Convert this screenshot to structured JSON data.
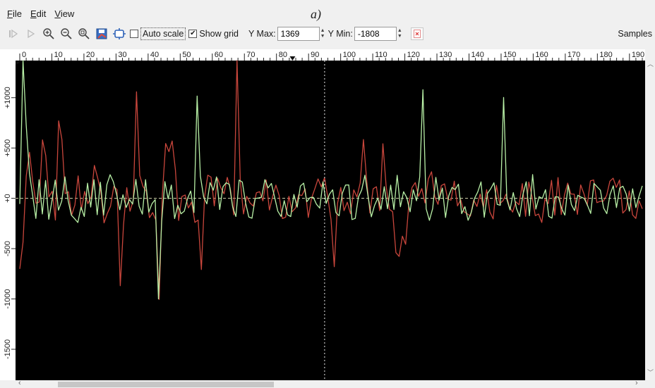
{
  "caption": "a)",
  "menu": {
    "file": "File",
    "edit": "Edit",
    "view": "View"
  },
  "toolbar": {
    "icons": [
      "step-icon",
      "play-icon",
      "zoom-in-icon",
      "zoom-out-icon",
      "zoom-fit-icon",
      "save-image-icon",
      "settings-icon"
    ],
    "auto_scale_label": "Auto scale",
    "auto_scale_checked": false,
    "show_grid_label": "Show grid",
    "show_grid_checked": true,
    "y_max_label": "Y Max:",
    "y_max_value": "1369",
    "y_min_label": "Y Min:",
    "y_min_value": "-1808",
    "samples_label": "Samples"
  },
  "chart_data": {
    "type": "line",
    "background": "#000000",
    "grid": true,
    "x_ticks": [
      "0",
      "10",
      "20",
      "30",
      "40",
      "50",
      "60",
      "70",
      "80",
      "90",
      "100",
      "110",
      "120",
      "130",
      "140",
      "150",
      "160",
      "170",
      "180",
      "190"
    ],
    "y_ticks": [
      "+1000",
      "+500",
      "+0",
      "-500",
      "-1000",
      "-1500"
    ],
    "ylim": [
      -1808,
      1369
    ],
    "xlim": [
      0,
      194
    ],
    "cursor_x": 95,
    "series": [
      {
        "color": "#c9463c",
        "values": [
          -701,
          -437,
          223,
          457,
          164,
          -49,
          -37,
          580,
          425,
          14,
          70,
          -216,
          770,
          585,
          47,
          65,
          -168,
          -67,
          223,
          -114,
          68,
          -53,
          16,
          327,
          205,
          68,
          -244,
          -151,
          -78,
          117,
          86,
          -868,
          -263,
          106,
          -128,
          -20,
          1058,
          227,
          118,
          71,
          -192,
          -142,
          -218,
          -1005,
          48,
          545,
          464,
          570,
          285,
          -220,
          18,
          33,
          -95,
          -37,
          -239,
          -216,
          -707,
          12,
          230,
          211,
          -75,
          200,
          105,
          45,
          208,
          85,
          -164,
          1369,
          180,
          -155,
          20,
          -45,
          -77,
          55,
          66,
          -26,
          182,
          -116,
          20,
          131,
          28,
          -201,
          -187,
          20,
          -133,
          -98,
          36,
          28,
          94,
          -190,
          2,
          94,
          193,
          114,
          204,
          10,
          -211,
          -679,
          -51,
          108,
          -122,
          -39,
          -154,
          84,
          14,
          152,
          584,
          181,
          -146,
          95,
          115,
          -122,
          542,
          117,
          -108,
          -134,
          -539,
          -577,
          -376,
          -457,
          -48,
          109,
          156,
          20,
          97,
          -47,
          192,
          264,
          16,
          -60,
          126,
          144,
          -7,
          -18,
          170,
          -75,
          -13,
          -133,
          -154,
          -177,
          -16,
          -81,
          43,
          -90,
          86,
          -137,
          -205,
          130,
          -53,
          -26,
          42,
          -83,
          -137,
          -34,
          -64,
          146,
          -179,
          162,
          16,
          -172,
          -156,
          -240,
          -7,
          -53,
          179,
          -167,
          206,
          -161,
          36,
          151,
          43,
          42,
          -160,
          133,
          45,
          -70,
          173,
          183,
          -43,
          -29,
          -28,
          29,
          170,
          200,
          109,
          182,
          -147,
          -112,
          74,
          -164,
          -200,
          -24,
          -104
        ]
      },
      {
        "color": "#b8f0a6",
        "values": [
          -56,
          1369,
          731,
          250,
          26,
          -200,
          185,
          -156,
          177,
          -208,
          -20,
          182,
          -117,
          -29,
          213,
          -21,
          -168,
          -203,
          -240,
          -88,
          -180,
          150,
          -87,
          186,
          -163,
          160,
          -168,
          136,
          235,
          166,
          42,
          -114,
          35,
          -91,
          -11,
          -57,
          188,
          -78,
          -157,
          185,
          -137,
          -53,
          -13,
          -1000,
          -227,
          166,
          -5,
          132,
          -201,
          -69,
          -154,
          -128,
          -5,
          72,
          -142,
          1016,
          221,
          15,
          -55,
          156,
          81,
          213,
          -111,
          115,
          154,
          138,
          -85,
          -180,
          181,
          162,
          -44,
          -185,
          -198,
          -2,
          3,
          12,
          186,
          104,
          148,
          13,
          -127,
          -180,
          -23,
          -163,
          -181,
          39,
          -88,
          122,
          151,
          -34,
          8,
          10,
          -59,
          -97,
          163,
          -51,
          40,
          85,
          -142,
          -173,
          50,
          132,
          133,
          -211,
          -199,
          13,
          83,
          230,
          13,
          -184,
          -70,
          2,
          -109,
          115,
          -103,
          131,
          -112,
          229,
          -84,
          65,
          6,
          -134,
          85,
          -24,
          216,
          1079,
          -105,
          -219,
          -102,
          208,
          -18,
          102,
          -191,
          26,
          108,
          87,
          140,
          -152,
          -83,
          -218,
          -137,
          1,
          63,
          163,
          -189,
          48,
          95,
          154,
          -60,
          -69,
          1002,
          -10,
          -115,
          57,
          -101,
          -182,
          37,
          165,
          -173,
          236,
          -106,
          16,
          -1,
          86,
          -179,
          -197,
          15,
          13,
          -101,
          -167,
          131,
          -61,
          -122,
          30,
          12,
          -1,
          -68,
          -150,
          148,
          115,
          80,
          -96,
          -152,
          38,
          125,
          -92,
          102,
          120,
          43,
          -127,
          95,
          -92,
          21,
          124
        ]
      }
    ]
  }
}
